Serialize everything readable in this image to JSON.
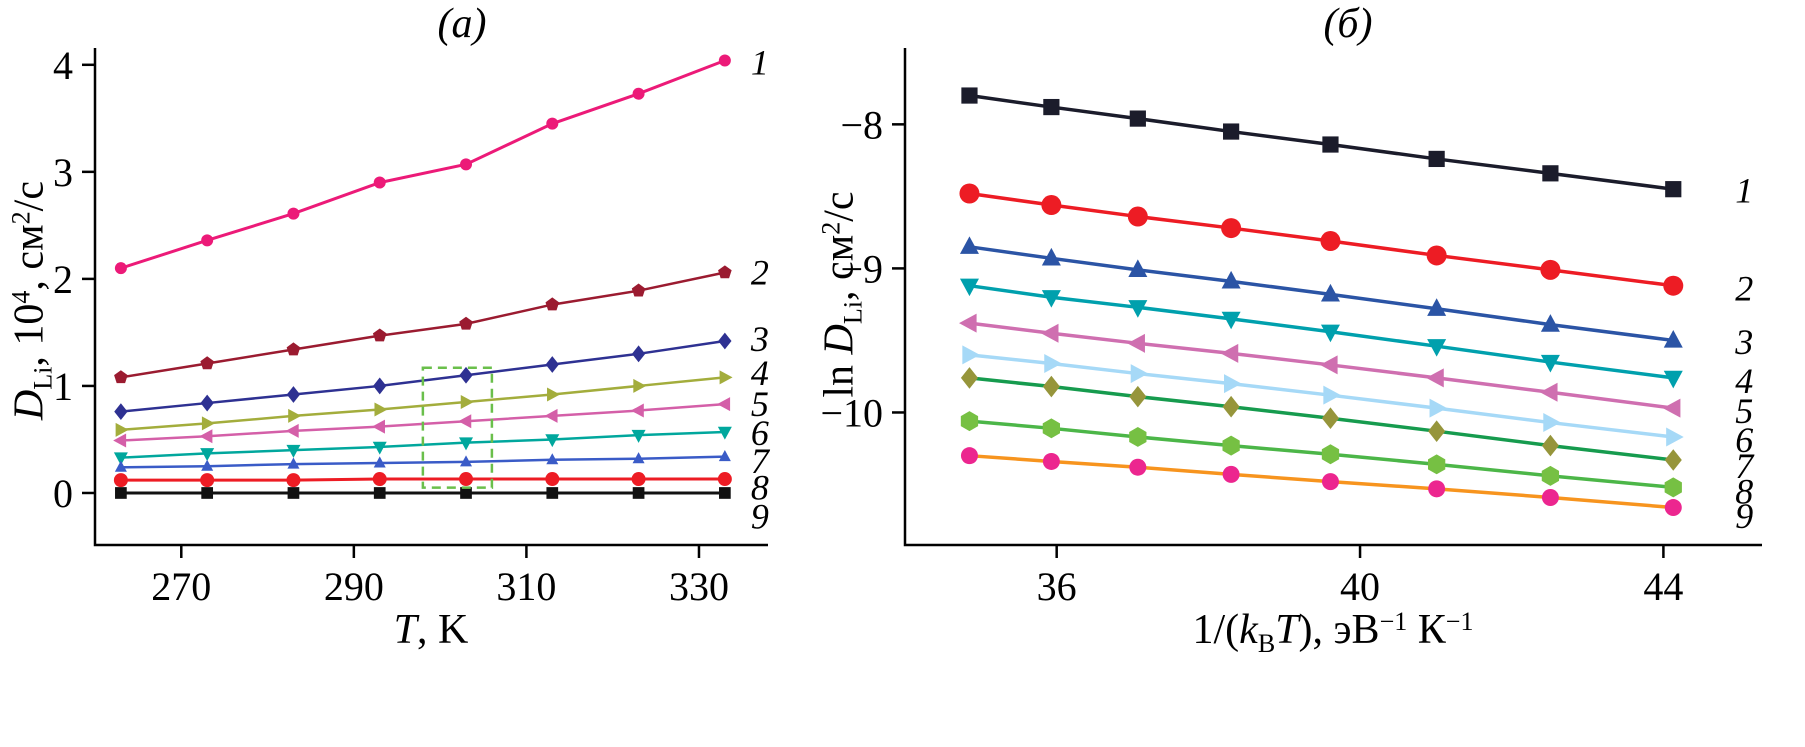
{
  "page": {
    "background": "#ffffff"
  },
  "chart_data": [
    {
      "type": "line",
      "panel_label": "(а)",
      "xlabel_parts": [
        {
          "t": "T",
          "i": 1
        },
        {
          "t": ", K"
        }
      ],
      "ylabel_parts": [
        {
          "t": "D",
          "i": 1
        },
        {
          "t": "Li",
          "sub": 1
        },
        {
          "t": ", 10"
        },
        {
          "t": "4",
          "sup": 1
        },
        {
          "t": ", см"
        },
        {
          "t": "2",
          "sup": 1
        },
        {
          "t": "/с"
        }
      ],
      "x_values": [
        263,
        273,
        283,
        293,
        303,
        313,
        323,
        333
      ],
      "xlim": [
        260,
        338
      ],
      "ylim": [
        -0.486,
        4.157
      ],
      "xticks": [
        270,
        290,
        310,
        330
      ],
      "yticks": [
        0,
        1,
        2,
        3,
        4
      ],
      "grid": false,
      "legend_position": "right-edge-numbers",
      "series": [
        {
          "name": "1",
          "color": "#ec1a78",
          "marker": "circle",
          "size": 6,
          "width": 3,
          "values": [
            2.1,
            2.36,
            2.61,
            2.9,
            3.07,
            3.45,
            3.73,
            4.04
          ],
          "label_y": 4.02
        },
        {
          "name": "2",
          "color": "#9b1b30",
          "marker": "pentagon",
          "size": 6.5,
          "width": 2.5,
          "values": [
            1.08,
            1.21,
            1.34,
            1.47,
            1.58,
            1.76,
            1.89,
            2.06
          ],
          "label_y": 2.06
        },
        {
          "name": "3",
          "color": "#2e3192",
          "marker": "diamond",
          "size": 7,
          "width": 2.5,
          "values": [
            0.76,
            0.84,
            0.92,
            1.0,
            1.1,
            1.2,
            1.3,
            1.42
          ],
          "label_y": 1.44
        },
        {
          "name": "4",
          "color": "#a3ad3c",
          "marker": "triangle-right",
          "size": 7,
          "width": 2.5,
          "values": [
            0.59,
            0.65,
            0.72,
            0.78,
            0.85,
            0.92,
            1.0,
            1.08
          ],
          "label_y": 1.12
        },
        {
          "name": "5",
          "color": "#d45fa8",
          "marker": "triangle-left",
          "size": 7,
          "width": 2.5,
          "values": [
            0.49,
            0.53,
            0.58,
            0.62,
            0.67,
            0.72,
            0.77,
            0.83
          ],
          "label_y": 0.83
        },
        {
          "name": "6",
          "color": "#00a79d",
          "marker": "triangle-down",
          "size": 7,
          "width": 2.5,
          "values": [
            0.33,
            0.37,
            0.4,
            0.43,
            0.47,
            0.5,
            0.54,
            0.57
          ],
          "label_y": 0.56
        },
        {
          "name": "7",
          "color": "#3a5bc7",
          "marker": "triangle-up",
          "size": 6,
          "width": 2.5,
          "values": [
            0.24,
            0.25,
            0.27,
            0.28,
            0.29,
            0.31,
            0.32,
            0.34
          ],
          "label_y": 0.3
        },
        {
          "name": "8",
          "color": "#ed1c24",
          "marker": "circle",
          "size": 7,
          "width": 3,
          "values": [
            0.12,
            0.12,
            0.12,
            0.13,
            0.13,
            0.13,
            0.13,
            0.13
          ],
          "label_y": 0.05
        },
        {
          "name": "9",
          "color": "#111111",
          "marker": "square",
          "size": 6.5,
          "width": 3,
          "values": [
            0.0,
            0.0,
            0.0,
            0.0,
            0.0,
            0.0,
            0.0,
            0.0
          ],
          "label_y": -0.22
        }
      ],
      "annotations": [
        {
          "type": "rect",
          "x0": 298,
          "x1": 306,
          "y0": 0.05,
          "y1": 1.17,
          "color": "#6abf4b",
          "dash": "9 6",
          "width": 2.5
        }
      ]
    },
    {
      "type": "line",
      "panel_label": "(б)",
      "xlabel_parts": [
        {
          "t": "1/("
        },
        {
          "t": "k",
          "i": 1
        },
        {
          "t": "B",
          "sub": 1
        },
        {
          "t": "T",
          "i": 1
        },
        {
          "t": "), эВ"
        },
        {
          "t": "−1",
          "sup": 1
        },
        {
          "t": " К"
        },
        {
          "t": "−1",
          "sup": 1
        }
      ],
      "ylabel_parts": [
        {
          "t": "ln "
        },
        {
          "t": "D",
          "i": 1
        },
        {
          "t": "Li",
          "sub": 1
        },
        {
          "t": ", см"
        },
        {
          "t": "2",
          "sup": 1
        },
        {
          "t": "/с"
        }
      ],
      "x_values": [
        34.85,
        35.93,
        37.07,
        38.3,
        39.61,
        41.01,
        42.51,
        44.13
      ],
      "xlim": [
        34.0,
        45.3
      ],
      "ylim": [
        -10.92,
        -7.47
      ],
      "xticks": [
        36,
        40,
        44
      ],
      "yticks": [
        -8,
        -9,
        -10
      ],
      "grid": false,
      "legend_position": "right-edge-numbers",
      "series": [
        {
          "name": "1",
          "color": "#1b1c2b",
          "marker": "square",
          "size": 9,
          "width": 3.5,
          "values": [
            -7.8,
            -7.88,
            -7.96,
            -8.05,
            -8.14,
            -8.24,
            -8.34,
            -8.45
          ],
          "label_y": -8.46
        },
        {
          "name": "2",
          "color": "#ed1c24",
          "marker": "circle",
          "size": 10,
          "width": 3.5,
          "values": [
            -8.48,
            -8.56,
            -8.64,
            -8.72,
            -8.81,
            -8.91,
            -9.01,
            -9.12
          ],
          "label_y": -9.14
        },
        {
          "name": "3",
          "color": "#2b54a5",
          "marker": "triangle-up",
          "size": 9.5,
          "width": 3.5,
          "values": [
            -8.85,
            -8.93,
            -9.01,
            -9.09,
            -9.18,
            -9.28,
            -9.39,
            -9.5
          ],
          "label_y": -9.51
        },
        {
          "name": "4",
          "color": "#00a0ad",
          "marker": "triangle-down",
          "size": 9.5,
          "width": 3.5,
          "values": [
            -9.12,
            -9.2,
            -9.27,
            -9.35,
            -9.44,
            -9.54,
            -9.65,
            -9.76
          ],
          "label_y": -9.78
        },
        {
          "name": "5",
          "color": "#cf6fb0",
          "marker": "triangle-left",
          "size": 9.5,
          "width": 3.5,
          "values": [
            -9.38,
            -9.45,
            -9.52,
            -9.59,
            -9.67,
            -9.76,
            -9.86,
            -9.97
          ],
          "label_y": -9.99
        },
        {
          "name": "6",
          "color": "#a6d9f7",
          "marker": "triangle-right",
          "size": 9.5,
          "width": 3.5,
          "values": [
            -9.6,
            -9.66,
            -9.73,
            -9.8,
            -9.88,
            -9.97,
            -10.07,
            -10.17
          ],
          "label_y": -10.19
        },
        {
          "name": "7",
          "color": "#169b4e",
          "marker": "diamond",
          "size": 9,
          "width": 3.5,
          "marker_color": "#96953b",
          "values": [
            -9.76,
            -9.82,
            -9.89,
            -9.96,
            -10.04,
            -10.13,
            -10.23,
            -10.33
          ],
          "label_y": -10.37
        },
        {
          "name": "8",
          "color": "#4cb648",
          "marker": "hexagon",
          "size": 9.5,
          "width": 3.5,
          "marker_color": "#76c043",
          "values": [
            -10.06,
            -10.11,
            -10.17,
            -10.23,
            -10.29,
            -10.36,
            -10.44,
            -10.52
          ],
          "label_y": -10.55
        },
        {
          "name": "9",
          "color": "#f7941e",
          "marker": "circle",
          "size": 8.5,
          "width": 3.5,
          "marker_color": "#ec268f",
          "values": [
            -10.3,
            -10.34,
            -10.38,
            -10.43,
            -10.48,
            -10.53,
            -10.59,
            -10.66
          ],
          "label_y": -10.72
        }
      ],
      "annotations": []
    }
  ]
}
